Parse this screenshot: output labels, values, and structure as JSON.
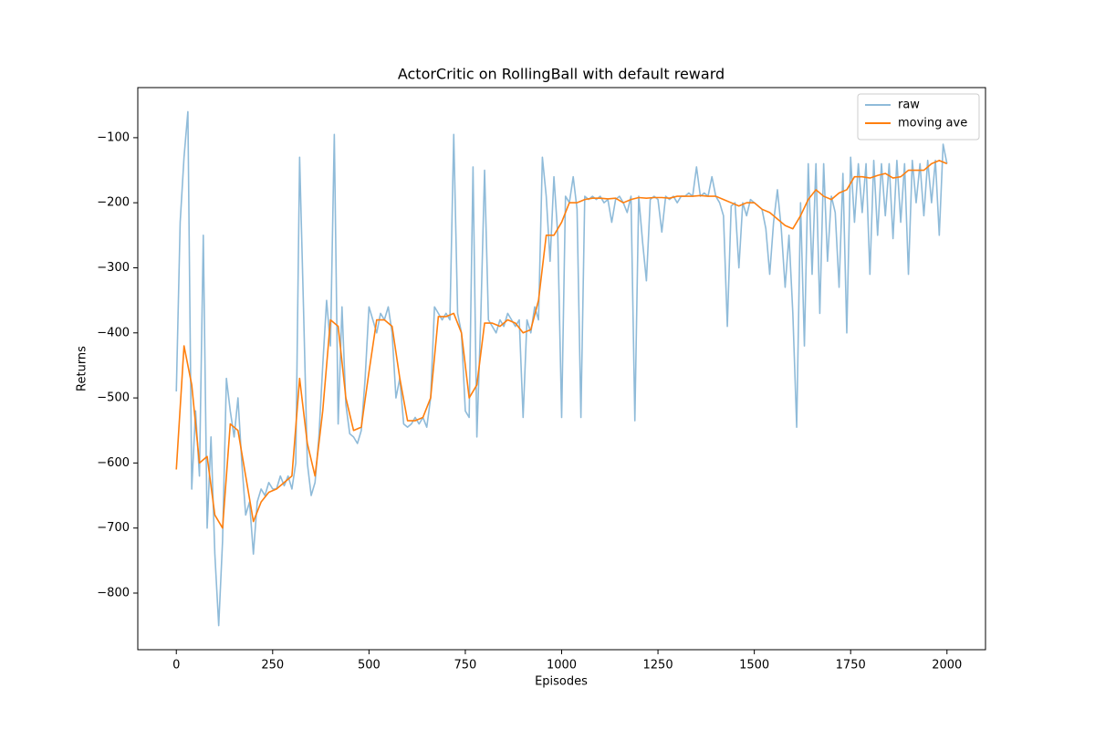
{
  "chart_data": {
    "type": "line",
    "title": "ActorCritic on RollingBall with default reward",
    "xlabel": "Episodes",
    "ylabel": "Returns",
    "xlim": [
      -100,
      2100
    ],
    "ylim": [
      -887,
      -23
    ],
    "xticks": [
      0,
      250,
      500,
      750,
      1000,
      1250,
      1500,
      1750,
      2000
    ],
    "yticks": [
      {
        "value": -800,
        "label": "−800"
      },
      {
        "value": -700,
        "label": "−700"
      },
      {
        "value": -600,
        "label": "−600"
      },
      {
        "value": -500,
        "label": "−500"
      },
      {
        "value": -400,
        "label": "−400"
      },
      {
        "value": -300,
        "label": "−300"
      },
      {
        "value": -200,
        "label": "−200"
      },
      {
        "value": -100,
        "label": "−100"
      }
    ],
    "legend": "upper right",
    "series": [
      {
        "name": "raw",
        "color": "#1f77b4",
        "opacity": 0.5,
        "x": [
          0,
          10,
          20,
          30,
          40,
          50,
          60,
          70,
          80,
          90,
          100,
          110,
          120,
          130,
          140,
          150,
          160,
          170,
          180,
          190,
          200,
          210,
          220,
          230,
          240,
          250,
          260,
          270,
          280,
          290,
          300,
          310,
          320,
          330,
          340,
          350,
          360,
          370,
          380,
          390,
          400,
          410,
          420,
          430,
          440,
          450,
          460,
          470,
          480,
          490,
          500,
          510,
          520,
          530,
          540,
          550,
          560,
          570,
          580,
          590,
          600,
          610,
          620,
          630,
          640,
          650,
          660,
          670,
          680,
          690,
          700,
          710,
          720,
          730,
          740,
          750,
          760,
          770,
          780,
          790,
          800,
          810,
          820,
          830,
          840,
          850,
          860,
          870,
          880,
          890,
          900,
          910,
          920,
          930,
          940,
          950,
          960,
          970,
          980,
          990,
          1000,
          1010,
          1020,
          1030,
          1040,
          1050,
          1060,
          1070,
          1080,
          1090,
          1100,
          1110,
          1120,
          1130,
          1140,
          1150,
          1160,
          1170,
          1180,
          1190,
          1200,
          1210,
          1220,
          1230,
          1240,
          1250,
          1260,
          1270,
          1280,
          1290,
          1300,
          1310,
          1320,
          1330,
          1340,
          1350,
          1360,
          1370,
          1380,
          1390,
          1400,
          1410,
          1420,
          1430,
          1440,
          1450,
          1460,
          1470,
          1480,
          1490,
          1500,
          1510,
          1520,
          1530,
          1540,
          1550,
          1560,
          1570,
          1580,
          1590,
          1600,
          1610,
          1620,
          1630,
          1640,
          1650,
          1660,
          1670,
          1680,
          1690,
          1700,
          1710,
          1720,
          1730,
          1740,
          1750,
          1760,
          1770,
          1780,
          1790,
          1800,
          1810,
          1820,
          1830,
          1840,
          1850,
          1860,
          1870,
          1880,
          1890,
          1900,
          1910,
          1920,
          1930,
          1940,
          1950,
          1960,
          1970,
          1980,
          1990,
          2000
        ],
        "values": [
          -490,
          -230,
          -130,
          -60,
          -640,
          -520,
          -620,
          -250,
          -700,
          -560,
          -740,
          -850,
          -720,
          -470,
          -520,
          -560,
          -500,
          -600,
          -680,
          -660,
          -740,
          -660,
          -640,
          -650,
          -630,
          -640,
          -640,
          -620,
          -635,
          -620,
          -640,
          -600,
          -130,
          -360,
          -600,
          -650,
          -630,
          -560,
          -450,
          -350,
          -420,
          -95,
          -540,
          -360,
          -510,
          -555,
          -560,
          -570,
          -550,
          -470,
          -360,
          -380,
          -400,
          -370,
          -380,
          -360,
          -400,
          -500,
          -470,
          -540,
          -545,
          -540,
          -530,
          -540,
          -530,
          -545,
          -500,
          -360,
          -370,
          -380,
          -370,
          -380,
          -95,
          -370,
          -400,
          -520,
          -530,
          -145,
          -560,
          -380,
          -150,
          -380,
          -390,
          -400,
          -380,
          -390,
          -370,
          -380,
          -390,
          -380,
          -530,
          -380,
          -400,
          -360,
          -380,
          -130,
          -190,
          -290,
          -160,
          -250,
          -530,
          -190,
          -200,
          -160,
          -210,
          -530,
          -190,
          -195,
          -190,
          -195,
          -190,
          -200,
          -195,
          -230,
          -195,
          -190,
          -200,
          -215,
          -190,
          -535,
          -190,
          -260,
          -320,
          -195,
          -190,
          -195,
          -245,
          -190,
          -195,
          -190,
          -200,
          -190,
          -190,
          -185,
          -190,
          -145,
          -190,
          -185,
          -190,
          -160,
          -190,
          -200,
          -220,
          -390,
          -205,
          -200,
          -300,
          -200,
          -220,
          -195,
          -200,
          -205,
          -210,
          -240,
          -310,
          -230,
          -180,
          -240,
          -330,
          -250,
          -370,
          -545,
          -200,
          -420,
          -140,
          -310,
          -140,
          -370,
          -140,
          -290,
          -190,
          -215,
          -330,
          -155,
          -400,
          -130,
          -230,
          -140,
          -215,
          -140,
          -310,
          -135,
          -250,
          -140,
          -220,
          -140,
          -255,
          -135,
          -230,
          -140,
          -310,
          -135,
          -200,
          -140,
          -220,
          -135,
          -200,
          -135,
          -250,
          -110,
          -140
        ]
      },
      {
        "name": "moving ave",
        "color": "#ff7f0e",
        "opacity": 1,
        "x": [
          0,
          20,
          40,
          60,
          80,
          100,
          120,
          140,
          160,
          180,
          200,
          220,
          240,
          260,
          280,
          300,
          320,
          340,
          360,
          380,
          400,
          420,
          440,
          460,
          480,
          500,
          520,
          540,
          560,
          580,
          600,
          620,
          640,
          660,
          680,
          700,
          720,
          740,
          760,
          780,
          800,
          820,
          840,
          860,
          880,
          900,
          920,
          940,
          960,
          980,
          1000,
          1020,
          1040,
          1060,
          1080,
          1100,
          1120,
          1140,
          1160,
          1180,
          1200,
          1220,
          1240,
          1260,
          1280,
          1300,
          1320,
          1340,
          1360,
          1380,
          1400,
          1420,
          1440,
          1460,
          1480,
          1500,
          1520,
          1540,
          1560,
          1580,
          1600,
          1620,
          1640,
          1660,
          1680,
          1700,
          1720,
          1740,
          1760,
          1780,
          1800,
          1820,
          1840,
          1860,
          1880,
          1900,
          1920,
          1940,
          1960,
          1980,
          2000
        ],
        "values": [
          -610,
          -420,
          -480,
          -600,
          -590,
          -680,
          -700,
          -540,
          -550,
          -620,
          -690,
          -660,
          -645,
          -640,
          -630,
          -620,
          -470,
          -570,
          -620,
          -520,
          -380,
          -390,
          -500,
          -550,
          -545,
          -460,
          -380,
          -380,
          -390,
          -470,
          -535,
          -535,
          -530,
          -500,
          -375,
          -375,
          -370,
          -400,
          -500,
          -480,
          -385,
          -385,
          -390,
          -380,
          -385,
          -400,
          -395,
          -350,
          -250,
          -250,
          -230,
          -200,
          -200,
          -195,
          -193,
          -193,
          -194,
          -193,
          -200,
          -195,
          -192,
          -193,
          -192,
          -192,
          -193,
          -190,
          -190,
          -190,
          -189,
          -190,
          -190,
          -195,
          -200,
          -205,
          -200,
          -200,
          -210,
          -215,
          -225,
          -235,
          -240,
          -220,
          -195,
          -180,
          -190,
          -195,
          -185,
          -180,
          -160,
          -160,
          -162,
          -158,
          -155,
          -162,
          -160,
          -150,
          -150,
          -150,
          -140,
          -135,
          -140
        ]
      }
    ]
  }
}
